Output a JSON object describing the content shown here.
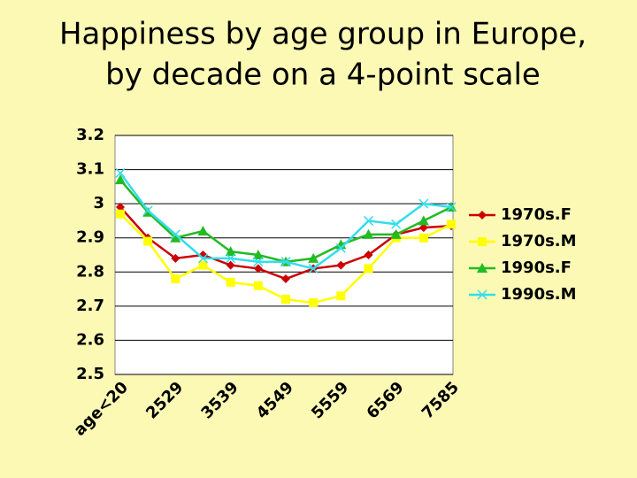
{
  "chart_data": {
    "type": "line",
    "title": "Happiness by age group in Europe,",
    "subtitle": "by decade on a 4-point scale",
    "categories": [
      "age<20",
      null,
      "2529",
      null,
      "3539",
      null,
      "4549",
      null,
      "5559",
      null,
      "6569",
      null,
      "7585"
    ],
    "series": [
      {
        "name": "1970s.F",
        "color": "#cc0000",
        "marker": "diamond",
        "values": [
          2.99,
          2.9,
          2.84,
          2.85,
          2.82,
          2.81,
          2.78,
          2.81,
          2.82,
          2.85,
          2.91,
          2.93,
          2.935
        ]
      },
      {
        "name": "1970s.M",
        "color": "#ffff00",
        "marker": "square",
        "values": [
          2.97,
          2.89,
          2.78,
          2.82,
          2.77,
          2.76,
          2.72,
          2.71,
          2.73,
          2.81,
          2.9,
          2.9,
          2.94
        ]
      },
      {
        "name": "1990s.F",
        "color": "#22bb22",
        "marker": "triangle",
        "values": [
          3.07,
          2.975,
          2.9,
          2.92,
          2.86,
          2.85,
          2.83,
          2.84,
          2.88,
          2.91,
          2.91,
          2.95,
          2.99
        ]
      },
      {
        "name": "1990s.M",
        "color": "#33ddee",
        "marker": "x",
        "values": [
          3.09,
          2.98,
          2.91,
          2.84,
          2.84,
          2.83,
          2.83,
          2.81,
          2.87,
          2.95,
          2.94,
          3.0,
          2.99
        ]
      }
    ],
    "ylim": [
      2.5,
      3.2
    ],
    "yticks": [
      {
        "value": 2.5,
        "label": "2.5"
      },
      {
        "value": 2.6,
        "label": "2.6"
      },
      {
        "value": 2.7,
        "label": "2.7"
      },
      {
        "value": 2.8,
        "label": "2.8"
      },
      {
        "value": 2.9,
        "label": "2.9"
      },
      3,
      {
        "value": 3.1,
        "label": "3.1"
      },
      {
        "value": 3.2,
        "label": "3.2"
      }
    ],
    "grid": true,
    "legend": "right"
  }
}
